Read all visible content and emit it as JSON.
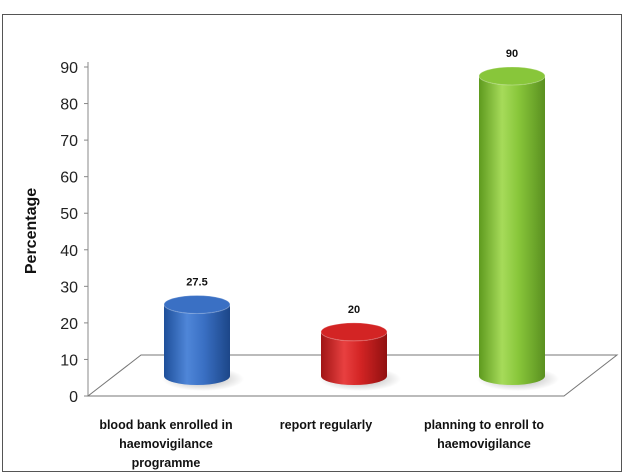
{
  "chart_data": {
    "type": "bar",
    "categories": [
      [
        "blood bank enrolled in",
        "haemovigilance",
        "programme"
      ],
      [
        "report regularly"
      ],
      [
        "planning to enroll to",
        "haemovigilance"
      ]
    ],
    "values": [
      27.5,
      20,
      90
    ],
    "value_labels": [
      "27.5",
      "20",
      "90"
    ],
    "colors": [
      "#3A70C4",
      "#D32424",
      "#88C63A"
    ],
    "ylabel": "Percentage",
    "ylim": [
      0,
      90
    ],
    "yticks": [
      0,
      10,
      20,
      30,
      40,
      50,
      60,
      70,
      80,
      90
    ],
    "grid": false,
    "style": "3d-cylinder"
  }
}
